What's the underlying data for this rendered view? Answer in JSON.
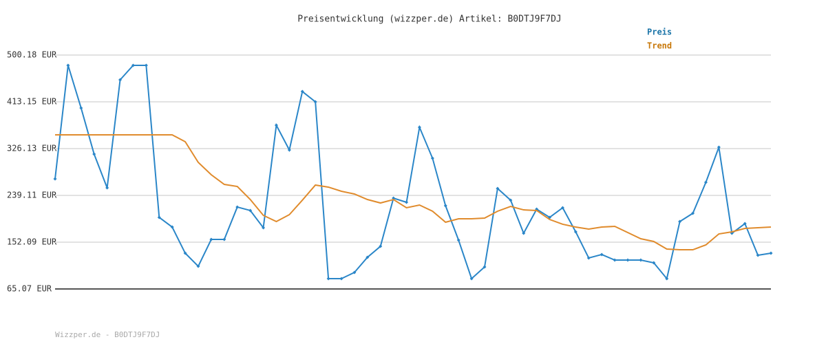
{
  "chart_data": {
    "type": "line",
    "title": "Preisentwicklung (wizzper.de) Artikel: B0DTJ9F7DJ",
    "footer": "Wizzper.de - B0DTJ9F7DJ",
    "ylim": [
      65.07,
      500.18
    ],
    "yticks": [
      {
        "value": 65.07,
        "label": "65.07 EUR"
      },
      {
        "value": 152.09,
        "label": "152.09 EUR"
      },
      {
        "value": 239.11,
        "label": "239.11 EUR"
      },
      {
        "value": 326.13,
        "label": "326.13 EUR"
      },
      {
        "value": 413.15,
        "label": "413.15 EUR"
      },
      {
        "value": 500.18,
        "label": "500.18 EUR"
      }
    ],
    "grid": true,
    "legend": "top-right",
    "series": [
      {
        "name": "Preis",
        "color": "#2a86c8",
        "label_color": "#1b74a8",
        "markers": true,
        "values": [
          269.8,
          481.0,
          401.6,
          315.9,
          253.2,
          454.1,
          481.0,
          481.0,
          198.2,
          180.2,
          131.6,
          107.3,
          157.2,
          157.2,
          217.4,
          211.0,
          179.0,
          369.6,
          323.6,
          432.3,
          413.2,
          84.3,
          84.3,
          95.8,
          124.0,
          144.4,
          234.0,
          226.3,
          365.8,
          308.2,
          219.9,
          155.9,
          84.3,
          106.0,
          251.9,
          230.2,
          168.7,
          213.5,
          198.2,
          216.1,
          171.3,
          122.7,
          129.1,
          118.8,
          118.8,
          118.8,
          113.7,
          84.3,
          190.5,
          205.8,
          263.4,
          328.7,
          168.7,
          186.6,
          127.8,
          131.6
        ]
      },
      {
        "name": "Trend",
        "color": "#e08b2c",
        "label_color": "#c8780a",
        "markers": false,
        "values": [
          351.7,
          351.7,
          351.7,
          351.7,
          351.7,
          351.7,
          351.7,
          351.7,
          351.7,
          351.7,
          338.9,
          300.5,
          277.5,
          259.6,
          255.7,
          231.4,
          202.0,
          190.5,
          203.3,
          230.2,
          258.3,
          254.5,
          246.8,
          241.7,
          231.4,
          225.0,
          231.4,
          216.1,
          221.2,
          209.7,
          189.2,
          195.6,
          195.6,
          196.9,
          209.7,
          218.6,
          212.2,
          211.0,
          194.3,
          185.4,
          180.2,
          176.4,
          180.2,
          181.5,
          170.0,
          158.5,
          153.4,
          139.3,
          138.0,
          138.0,
          147.0,
          167.4,
          171.3,
          177.7,
          178.9,
          180.2
        ]
      }
    ]
  }
}
